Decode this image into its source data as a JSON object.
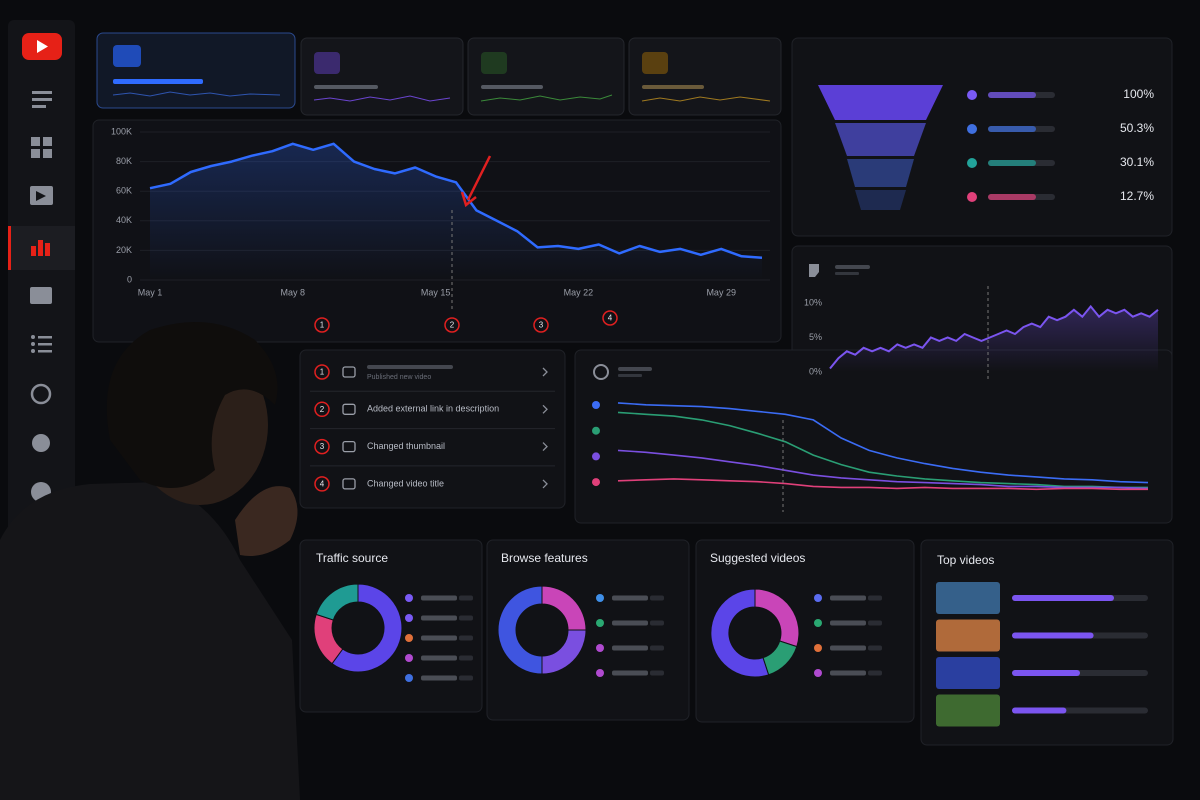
{
  "main_chart": {
    "yticks": [
      {
        "value": 0,
        "label": "0"
      },
      {
        "value": 20000,
        "label": "20K"
      },
      {
        "value": 40000,
        "label": "40K"
      },
      {
        "value": 60000,
        "label": "60K"
      },
      {
        "value": 80000,
        "label": "80K"
      },
      {
        "value": 100000,
        "label": "100K"
      }
    ],
    "ylim": [
      0,
      100000
    ],
    "categories": [
      "May 1",
      null,
      null,
      null,
      null,
      null,
      null,
      "May 8",
      null,
      null,
      null,
      null,
      null,
      null,
      "May 15",
      null,
      null,
      null,
      null,
      null,
      null,
      "May 22",
      null,
      null,
      null,
      null,
      null,
      null,
      "May 29",
      null,
      null
    ],
    "values": [
      62000,
      65000,
      73000,
      77000,
      80000,
      84000,
      87000,
      92000,
      88000,
      92000,
      80000,
      75000,
      72000,
      76000,
      70000,
      66000,
      47000,
      40000,
      33000,
      22000,
      23000,
      21000,
      24000,
      18000,
      23000,
      19000,
      21000,
      17000,
      21000,
      16000,
      15000
    ],
    "color": "#2f6bff",
    "grid": true,
    "markers": [
      "1",
      "2",
      "3",
      "4"
    ]
  },
  "funnel": {
    "labels": [
      "100%",
      "50.3%",
      "30.1%",
      "12.7%"
    ],
    "colors": [
      "#7a5af5",
      "#3f6fe0",
      "#22a39a",
      "#e0407a"
    ]
  },
  "conversion_chart": {
    "yticks": [
      {
        "value": 0,
        "label": "0%"
      },
      {
        "value": 5,
        "label": "5%"
      },
      {
        "value": 10,
        "label": "10%"
      }
    ],
    "ylim": [
      0,
      11
    ],
    "values": [
      0.5,
      2,
      3,
      2.5,
      3.5,
      3,
      3.5,
      3,
      4,
      3.5,
      4,
      3.5,
      5,
      4.5,
      5,
      4.5,
      5.5,
      5,
      4.5,
      5,
      5.5,
      6,
      5.5,
      6.5,
      7,
      6.5,
      8,
      7.5,
      8,
      9,
      8,
      9.5,
      8,
      9,
      8.5,
      9,
      8,
      8.5,
      8,
      9
    ],
    "color": "#7b55f0"
  },
  "events": {
    "numbers": [
      "1",
      "2",
      "3",
      "4"
    ],
    "labels": [
      "Published new video",
      "Added external link in description",
      "Changed thumbnail",
      "Changed video title"
    ]
  },
  "retention_chart": {
    "ylim": [
      0,
      100
    ],
    "series": [
      {
        "color": "#3b6cf5",
        "values": [
          97,
          95,
          94,
          93,
          91,
          88,
          85,
          79,
          60,
          47,
          39,
          33,
          28,
          24,
          21,
          19,
          17,
          16,
          14,
          13
        ]
      },
      {
        "color": "#2a9e74",
        "values": [
          87,
          85,
          83,
          79,
          73,
          65,
          56,
          42,
          32,
          24,
          20,
          17,
          15,
          13,
          12,
          11,
          9,
          9,
          8,
          8
        ]
      },
      {
        "color": "#7a4fe0",
        "values": [
          47,
          45,
          42,
          39,
          35,
          31,
          26,
          21,
          18,
          16,
          14,
          13,
          12,
          11,
          9,
          9,
          8,
          8,
          8,
          7
        ]
      },
      {
        "color": "#e0407a",
        "values": [
          15,
          16,
          17,
          16,
          15,
          14,
          12,
          9,
          8,
          8,
          7,
          8,
          7,
          7,
          7,
          6,
          7,
          7,
          6,
          6
        ]
      }
    ]
  },
  "panels": [
    {
      "title": "Traffic source",
      "segments": [
        {
          "color": "#5b45e8",
          "value": 60
        },
        {
          "color": "#e0407a",
          "value": 20
        },
        {
          "color": "#1f9b93",
          "value": 20
        }
      ],
      "legend_colors": [
        "#7a5af5",
        "#7a5af5",
        "#e0703a",
        "#b04ad0",
        "#3f6fe0"
      ]
    },
    {
      "title": "Browse features",
      "segments": [
        {
          "color": "#c945b8",
          "value": 25
        },
        {
          "color": "#7a4fe0",
          "value": 25
        },
        {
          "color": "#3f55e0",
          "value": 50
        }
      ],
      "legend_colors": [
        "#3f8fe8",
        "#2aa872",
        "#b04ad0",
        "#b04ad0"
      ]
    },
    {
      "title": "Suggested videos",
      "segments": [
        {
          "color": "#c945b8",
          "value": 30
        },
        {
          "color": "#2a9e74",
          "value": 15
        },
        {
          "color": "#5b45e8",
          "value": 55
        }
      ],
      "legend_colors": [
        "#5b6cf0",
        "#2aa872",
        "#e0703a",
        "#b04ad0"
      ]
    }
  ],
  "top_videos": {
    "title": "Top videos",
    "values": [
      75,
      60,
      50,
      40
    ],
    "xlim": [
      0,
      100
    ],
    "color": "#7b55f0",
    "thumb_colors": [
      "#35608a",
      "#b06a3a",
      "#2a3fa0",
      "#3e6a30"
    ]
  }
}
